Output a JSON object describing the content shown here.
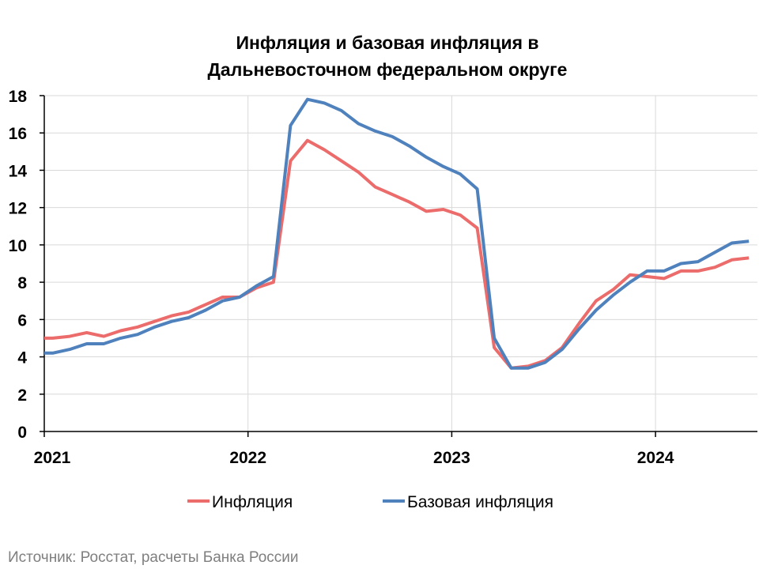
{
  "chart_data": {
    "type": "line",
    "title": "Инфляция и базовая инфляция в Дальневосточном федеральном округе",
    "title_lines": [
      "Инфляция и базовая инфляция в",
      "Дальневосточном федеральном округе"
    ],
    "xlabel": "",
    "ylabel": "",
    "ylim": [
      0,
      18
    ],
    "yticks": [
      "0",
      "2",
      "4",
      "6",
      "8",
      "10",
      "12",
      "14",
      "16",
      "18"
    ],
    "xticks": [
      "2021",
      "2022",
      "2023",
      "2024"
    ],
    "grid": true,
    "legend": "bottom",
    "x": [
      "2021-01",
      "2021-02",
      "2021-03",
      "2021-04",
      "2021-05",
      "2021-06",
      "2021-07",
      "2021-08",
      "2021-09",
      "2021-10",
      "2021-11",
      "2021-12",
      "2022-01",
      "2022-02",
      "2022-03",
      "2022-04",
      "2022-05",
      "2022-06",
      "2022-07",
      "2022-08",
      "2022-09",
      "2022-10",
      "2022-11",
      "2022-12",
      "2023-01",
      "2023-02",
      "2023-03",
      "2023-04",
      "2023-05",
      "2023-06",
      "2023-07",
      "2023-08",
      "2023-09",
      "2023-10",
      "2023-11",
      "2023-12",
      "2024-01",
      "2024-02",
      "2024-03",
      "2024-04",
      "2024-05",
      "2024-06"
    ],
    "series": [
      {
        "name": "Инфляция",
        "color": "#ec6b6b",
        "values": [
          5.0,
          5.1,
          5.3,
          5.1,
          5.4,
          5.6,
          5.9,
          6.2,
          6.4,
          6.8,
          7.2,
          7.2,
          7.7,
          8.0,
          14.5,
          15.6,
          15.1,
          14.5,
          13.9,
          13.1,
          12.7,
          12.3,
          11.8,
          11.9,
          11.6,
          10.9,
          4.5,
          3.4,
          3.5,
          3.8,
          4.5,
          5.8,
          7.0,
          7.6,
          8.4,
          8.3,
          8.2,
          8.6,
          8.6,
          8.8,
          9.2,
          9.3
        ]
      },
      {
        "name": "Базовая инфляция",
        "color": "#4f81bd",
        "values": [
          4.2,
          4.4,
          4.7,
          4.7,
          5.0,
          5.2,
          5.6,
          5.9,
          6.1,
          6.5,
          7.0,
          7.2,
          7.8,
          8.3,
          16.4,
          17.8,
          17.6,
          17.2,
          16.5,
          16.1,
          15.8,
          15.3,
          14.7,
          14.2,
          13.8,
          13.0,
          5.0,
          3.4,
          3.4,
          3.7,
          4.4,
          5.5,
          6.5,
          7.3,
          8.0,
          8.6,
          8.6,
          9.0,
          9.1,
          9.6,
          10.1,
          10.2
        ]
      }
    ]
  },
  "source": "Источник: Росстат, расчеты Банка России"
}
